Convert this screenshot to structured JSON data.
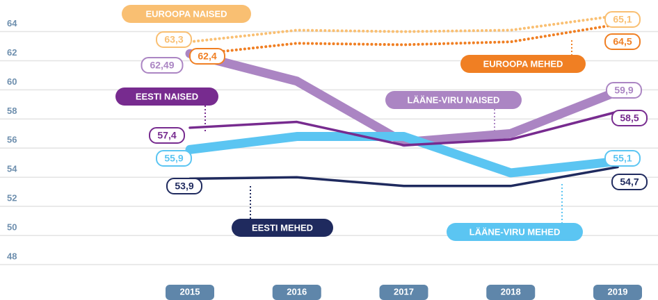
{
  "chart_data": {
    "type": "line",
    "categories": [
      "2015",
      "2016",
      "2017",
      "2018",
      "2019"
    ],
    "ylim": [
      47,
      65.6
    ],
    "yticks": [
      48,
      50,
      52,
      54,
      56,
      58,
      60,
      62,
      64
    ],
    "grid": true,
    "series": [
      {
        "name": "EUROOPA NAISED",
        "color": "#f9bf72",
        "style": "dotted",
        "values": [
          63.3,
          64.1,
          64.0,
          64.1,
          65.1
        ],
        "value_labels": [
          "63,3",
          null,
          null,
          null,
          "65,1"
        ]
      },
      {
        "name": "EUROOPA MEHED",
        "color": "#f07f23",
        "style": "dotted",
        "values": [
          62.4,
          63.2,
          63.1,
          63.3,
          64.5
        ],
        "value_labels": [
          "62,4",
          null,
          null,
          null,
          "64,5"
        ]
      },
      {
        "name": "LÄÄNE-VIRU NAISED",
        "color": "#ab85c3",
        "style": "thick",
        "values": [
          62.49,
          60.6,
          56.4,
          57.0,
          59.9
        ],
        "value_labels": [
          "62,49",
          null,
          null,
          null,
          "59,9"
        ]
      },
      {
        "name": "LÄÄNE-VIRU MEHED",
        "color": "#5bc5f2",
        "style": "thick",
        "values": [
          55.9,
          56.8,
          56.8,
          54.3,
          55.1
        ],
        "value_labels": [
          "55,9",
          null,
          null,
          null,
          "55,1"
        ]
      },
      {
        "name": "EESTI NAISED",
        "color": "#772b8f",
        "style": "thin",
        "values": [
          57.4,
          57.8,
          56.2,
          56.6,
          58.5
        ],
        "value_labels": [
          "57,4",
          null,
          null,
          null,
          "58,5"
        ]
      },
      {
        "name": "EESTI MEHED",
        "color": "#1f2a5e",
        "style": "thin",
        "values": [
          53.9,
          54.0,
          53.4,
          53.4,
          54.7
        ],
        "value_labels": [
          "53,9",
          null,
          null,
          null,
          "54,7"
        ]
      }
    ]
  }
}
